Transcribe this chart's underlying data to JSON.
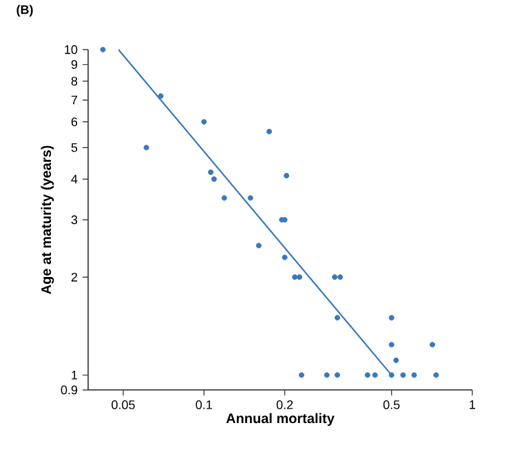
{
  "chart_data": {
    "type": "scatter",
    "title": "(B)",
    "xlabel": "Annual mortality",
    "ylabel": "Age at maturity (years)",
    "log": "xy",
    "xlim": [
      0.037,
      1
    ],
    "ylim": [
      0.9,
      10
    ],
    "xticks": [
      0.05,
      0.1,
      0.2,
      0.5,
      1
    ],
    "yticks": [
      0.9,
      1,
      2,
      3,
      4,
      5,
      6,
      7,
      8,
      9,
      10
    ],
    "marker": "circle",
    "series": [
      {
        "color": "#3a78bd",
        "x": [
          0.042,
          0.069,
          0.061,
          0.1,
          0.175,
          0.106,
          0.109,
          0.203,
          0.119,
          0.149,
          0.195,
          0.2,
          0.16,
          0.2,
          0.218,
          0.227,
          0.307,
          0.322,
          0.314,
          0.5,
          0.5,
          0.71,
          0.52,
          0.231,
          0.287,
          0.314,
          0.407,
          0.434,
          0.5,
          0.552,
          0.607,
          0.733
        ],
        "values": [
          10,
          7.2,
          5,
          6,
          5.6,
          4.2,
          4,
          4.1,
          3.5,
          3.5,
          3,
          3,
          2.5,
          2.3,
          2,
          2,
          2,
          2,
          1.5,
          1.5,
          1.24,
          1.24,
          1.11,
          1,
          1,
          1,
          1,
          1,
          1,
          1,
          1,
          1
        ]
      },
      {
        "type": "line",
        "marker": "none",
        "color": "#3a78bd",
        "x": [
          0.048,
          0.5
        ],
        "values": [
          10,
          1
        ]
      }
    ]
  }
}
